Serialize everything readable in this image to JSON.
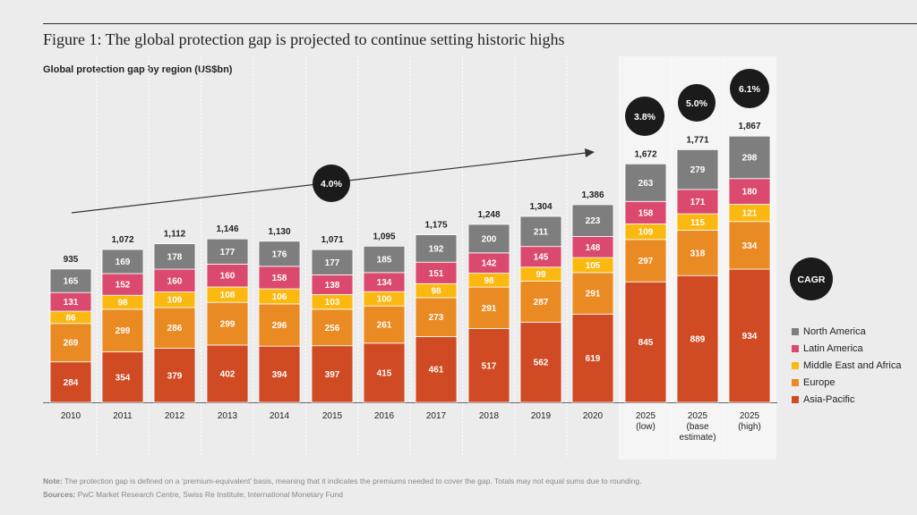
{
  "figure": {
    "title": "Figure 1: The global protection gap is projected to continue setting historic highs",
    "subtitle": "Global protection gap by region (US$bn)",
    "note_label": "Note:",
    "note_text": " The protection gap is defined on a ‘premium-equivalent’ basis, meaning that it indicates the premiums needed to cover the gap. Totals may not equal sums due to rounding.",
    "sources_label": "Sources:",
    "sources_text": " PwC Market Research Centre, Swiss Re Institute, International Monetary Fund"
  },
  "colors": {
    "asia_pacific": "#d04a24",
    "europe": "#ea8a23",
    "mea": "#fbb810",
    "latin_america": "#db4a6e",
    "north_america": "#7e7e7e",
    "bubble": "#1b1b1b",
    "projection_bg": "#f5f5f5"
  },
  "chart_data": {
    "type": "bar",
    "stacked": true,
    "title": "Figure 1: The global protection gap is projected to continue setting historic highs",
    "subtitle": "Global protection gap by region (US$bn)",
    "categories": [
      [
        "2010"
      ],
      [
        "2011"
      ],
      [
        "2012"
      ],
      [
        "2013"
      ],
      [
        "2014"
      ],
      [
        "2015"
      ],
      [
        "2016"
      ],
      [
        "2017"
      ],
      [
        "2018"
      ],
      [
        "2019"
      ],
      [
        "2020"
      ],
      [
        "2025",
        "(low)"
      ],
      [
        "2025",
        "(base",
        "estimate)"
      ],
      [
        "2025",
        "(high)"
      ]
    ],
    "series": [
      {
        "name": "Asia-Pacific",
        "values": [
          284,
          354,
          379,
          402,
          394,
          397,
          415,
          461,
          517,
          562,
          619,
          845,
          889,
          934
        ]
      },
      {
        "name": "Europe",
        "values": [
          269,
          299,
          286,
          299,
          296,
          256,
          261,
          273,
          291,
          287,
          291,
          297,
          318,
          334
        ]
      },
      {
        "name": "Middle East and Africa",
        "values": [
          86,
          98,
          109,
          108,
          106,
          103,
          100,
          98,
          98,
          99,
          105,
          109,
          115,
          121
        ]
      },
      {
        "name": "Latin America",
        "values": [
          131,
          152,
          160,
          160,
          158,
          138,
          134,
          151,
          142,
          145,
          148,
          158,
          171,
          180
        ]
      },
      {
        "name": "North America",
        "values": [
          165,
          169,
          178,
          177,
          176,
          177,
          185,
          192,
          200,
          211,
          223,
          263,
          279,
          298
        ]
      }
    ],
    "totals": [
      "935",
      "1,072",
      "1,112",
      "1,146",
      "1,130",
      "1,071",
      "1,095",
      "1,175",
      "1,248",
      "1,304",
      "1,386",
      "1,672",
      "1,771",
      "1,867"
    ],
    "ylim": [
      0,
      2100
    ],
    "legend": {
      "position": "right",
      "title": "CAGR",
      "order": [
        "North America",
        "Latin America",
        "Middle East and Africa",
        "Europe",
        "Asia-Pacific"
      ]
    },
    "annotations": [
      {
        "text": "4.0%",
        "type": "trend-arrow",
        "from_category": "2010",
        "to_category": "2020"
      },
      {
        "text": "3.8%",
        "category": "2025 (low)"
      },
      {
        "text": "5.0%",
        "category": "2025 (base estimate)"
      },
      {
        "text": "6.1%",
        "category": "2025 (high)"
      }
    ]
  }
}
